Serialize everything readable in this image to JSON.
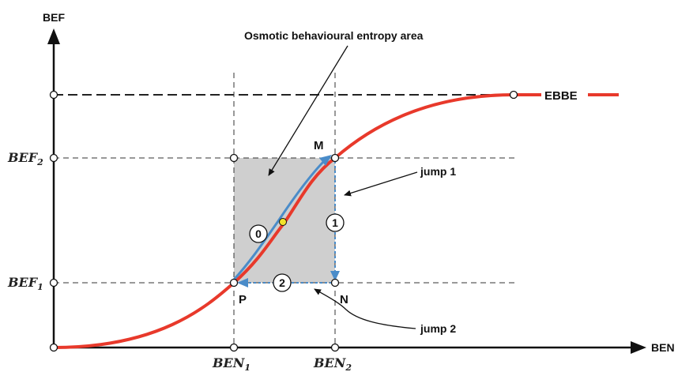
{
  "axes": {
    "y_label": "BEF",
    "x_label": "BEN"
  },
  "annotations": {
    "area_label": "Osmotic behavioural entropy area",
    "curve_label": "EBBE",
    "jump1": "jump 1",
    "jump2": "jump 2"
  },
  "points": {
    "M": "M",
    "N": "N",
    "P": "P"
  },
  "circled": {
    "zero": "0",
    "one": "1",
    "two": "2"
  },
  "ticks": {
    "bef2_base": "BEF",
    "bef2_sub": "2",
    "bef1_base": "BEF",
    "bef1_sub": "1",
    "ben1_base": "BEN",
    "ben1_sub": "1",
    "ben2_base": "BEN",
    "ben2_sub": "2"
  },
  "colors": {
    "curve": "#e8392b",
    "path": "#4a8cc9",
    "area": "#cfcfcf",
    "center_dot": "#f2e22a"
  }
}
